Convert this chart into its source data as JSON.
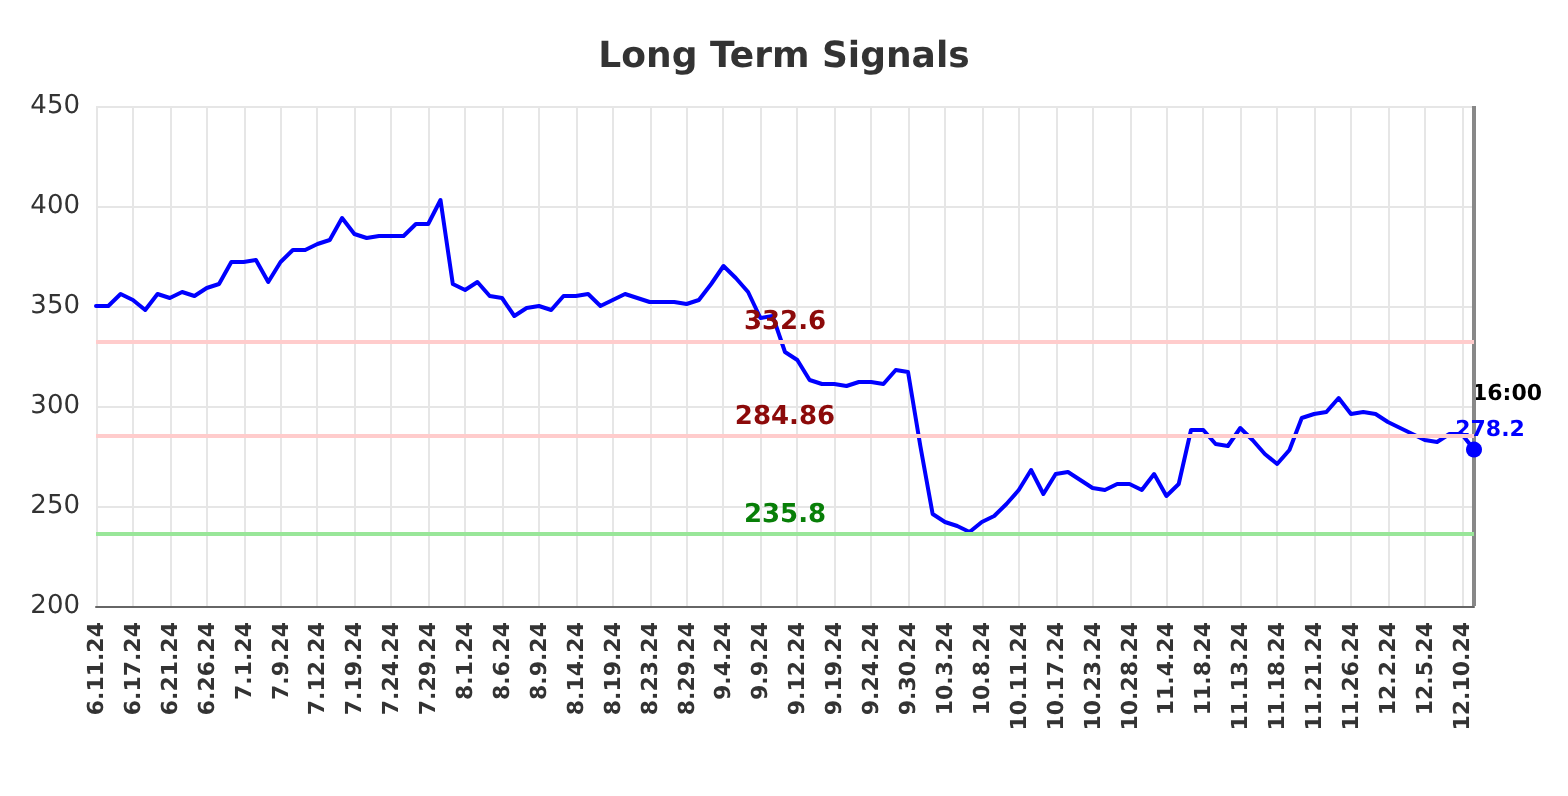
{
  "chart_data": {
    "type": "line",
    "title": "Long Term Signals",
    "categories": [
      "6.11.24",
      null,
      null,
      "6.17.24",
      null,
      null,
      "6.21.24",
      null,
      null,
      "6.26.24",
      null,
      null,
      "7.1.24",
      null,
      null,
      "7.9.24",
      null,
      null,
      "7.12.24",
      null,
      null,
      "7.19.24",
      null,
      null,
      "7.24.24",
      null,
      null,
      "7.29.24",
      null,
      null,
      "8.1.24",
      null,
      null,
      "8.6.24",
      null,
      null,
      "8.9.24",
      null,
      null,
      "8.14.24",
      null,
      null,
      "8.19.24",
      null,
      null,
      "8.23.24",
      null,
      null,
      "8.29.24",
      null,
      null,
      "9.4.24",
      null,
      null,
      "9.9.24",
      null,
      null,
      "9.12.24",
      null,
      null,
      "9.19.24",
      null,
      null,
      "9.24.24",
      null,
      null,
      "9.30.24",
      null,
      null,
      "10.3.24",
      null,
      null,
      "10.8.24",
      null,
      null,
      "10.11.24",
      null,
      null,
      "10.17.24",
      null,
      null,
      "10.23.24",
      null,
      null,
      "10.28.24",
      null,
      null,
      "11.4.24",
      null,
      null,
      "11.8.24",
      null,
      null,
      "11.13.24",
      null,
      null,
      "11.18.24",
      null,
      null,
      "11.21.24",
      null,
      null,
      "11.26.24",
      null,
      null,
      "12.2.24",
      null,
      null,
      "12.5.24",
      null,
      null,
      "12.10.24",
      null
    ],
    "series": [
      {
        "color": "#0000ff",
        "values": [
          350,
          350,
          356,
          353,
          348,
          356,
          354,
          357,
          355,
          359,
          361,
          372,
          372,
          373,
          362,
          372,
          378,
          378,
          381,
          383,
          394,
          386,
          384,
          385,
          385,
          385,
          391,
          391,
          403,
          361,
          358,
          362,
          355,
          354,
          345,
          349,
          350,
          348,
          355,
          355,
          356,
          350,
          353,
          356,
          354,
          352,
          352,
          352,
          351,
          353,
          361,
          370,
          364,
          357,
          344,
          345,
          327,
          323,
          313,
          311,
          311,
          310,
          312,
          312,
          311,
          318,
          317,
          280,
          246,
          242,
          240,
          237,
          242,
          245,
          251,
          258,
          268,
          256,
          266,
          267,
          263,
          259,
          258,
          261,
          261,
          258,
          266,
          255,
          261,
          288,
          288,
          281,
          280,
          289,
          283,
          276,
          271,
          278,
          294,
          296,
          297,
          304,
          296,
          297,
          296,
          292,
          289,
          286,
          283,
          282,
          286,
          286,
          278.2
        ],
        "value_labels": [
          null,
          null,
          null,
          null,
          null,
          null,
          null,
          null,
          null,
          null,
          null,
          null,
          null,
          null,
          null,
          null,
          null,
          null,
          null,
          null,
          null,
          null,
          null,
          null,
          null,
          null,
          null,
          null,
          null,
          null,
          null,
          null,
          null,
          null,
          null,
          null,
          null,
          null,
          null,
          null,
          null,
          null,
          null,
          null,
          null,
          null,
          null,
          null,
          null,
          null,
          null,
          null,
          null,
          null,
          null,
          null,
          null,
          null,
          null,
          null,
          null,
          null,
          null,
          null,
          null,
          null,
          null,
          null,
          null,
          null,
          null,
          null,
          null,
          null,
          null,
          null,
          null,
          null,
          null,
          null,
          null,
          null,
          null,
          null,
          null,
          null,
          null,
          null,
          null,
          null,
          null,
          null,
          null,
          null,
          null,
          null,
          null,
          null,
          null,
          null,
          null,
          null,
          null,
          null,
          null,
          null,
          null,
          null,
          null,
          null,
          null,
          null,
          "278.2"
        ]
      }
    ],
    "annotations": [
      "16:00"
    ],
    "ref_lines": [
      {
        "axis": "y",
        "value": 332.6,
        "label": "332.6",
        "color": "#ffcccc"
      },
      {
        "axis": "y",
        "value": 284.86,
        "label": "284.86",
        "color": "#ffcccc"
      },
      {
        "axis": "y",
        "value": 235.8,
        "label": "235.8",
        "color": "#99e699"
      }
    ],
    "ylim": [
      200,
      450
    ],
    "yticks": [
      200,
      250,
      300,
      350,
      400,
      450
    ],
    "grid": true,
    "line_style": "solid"
  }
}
